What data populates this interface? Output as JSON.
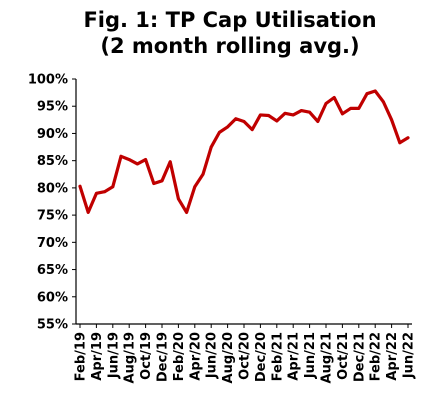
{
  "chart_data": {
    "type": "line",
    "title": [
      "Fig. 1: TP Cap Utilisation",
      "(2 month rolling avg.)"
    ],
    "xlabel": "",
    "ylabel": "",
    "ylim": [
      55,
      100
    ],
    "y_ticks": [
      55,
      60,
      65,
      70,
      75,
      80,
      85,
      90,
      95,
      100
    ],
    "y_tick_suffix": "%",
    "x_tick_labels": [
      "Feb/19",
      "Apr/19",
      "Jun/19",
      "Aug/19",
      "Oct/19",
      "Dec/19",
      "Feb/20",
      "Apr/20",
      "Jun/20",
      "Aug/20",
      "Oct/20",
      "Dec/20",
      "Feb/21",
      "Apr/21",
      "Jun/21",
      "Aug/21",
      "Oct/21",
      "Dec/21",
      "Feb/22",
      "Apr/22",
      "Jun/22"
    ],
    "grid": false,
    "legend": "none",
    "line_color": "#c00000",
    "series": [
      {
        "x": [
          "Feb/19",
          "Mar/19",
          "Apr/19",
          "May/19",
          "Jun/19",
          "Jul/19",
          "Aug/19",
          "Sep/19",
          "Oct/19",
          "Nov/19",
          "Dec/19",
          "Jan/20",
          "Feb/20",
          "Mar/20",
          "Apr/20",
          "May/20",
          "Jun/20",
          "Jul/20",
          "Aug/20",
          "Sep/20",
          "Oct/20",
          "Nov/20",
          "Dec/20",
          "Jan/21",
          "Feb/21",
          "Mar/21",
          "Apr/21",
          "May/21",
          "Jun/21",
          "Jul/21",
          "Aug/21",
          "Sep/21",
          "Oct/21",
          "Nov/21",
          "Dec/21",
          "Jan/22",
          "Feb/22",
          "Mar/22",
          "Apr/22",
          "May/22",
          "Jun/22"
        ],
        "values": [
          80.3,
          75.5,
          79.0,
          79.3,
          80.2,
          85.8,
          85.2,
          84.4,
          85.2,
          80.8,
          81.3,
          84.8,
          78.0,
          75.5,
          80.2,
          82.5,
          87.5,
          90.2,
          91.2,
          92.7,
          92.2,
          90.7,
          93.4,
          93.3,
          92.3,
          93.7,
          93.4,
          94.2,
          93.9,
          92.2,
          95.5,
          96.6,
          93.6,
          94.6,
          94.6,
          97.3,
          97.8,
          95.8,
          92.5,
          88.3,
          89.2
        ]
      }
    ]
  }
}
